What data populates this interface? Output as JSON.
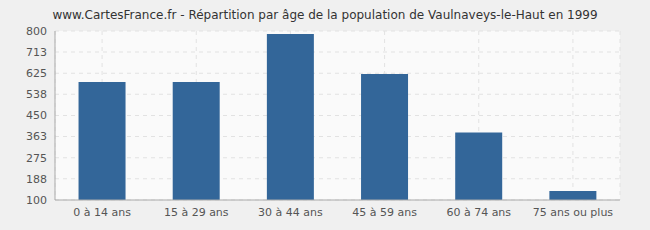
{
  "chart_data": {
    "type": "bar",
    "title": "www.CartesFrance.fr - Répartition par âge de la population de Vaulnaveys-le-Haut en 1999",
    "categories": [
      "0 à 14 ans",
      "15 à 29 ans",
      "30 à 44 ans",
      "45 à 59 ans",
      "60 à 74 ans",
      "75 ans ou plus"
    ],
    "values": [
      589,
      589,
      788,
      622,
      380,
      137
    ],
    "color": "#336699",
    "ylim": [
      100,
      800
    ],
    "yticks": [
      100,
      188,
      275,
      363,
      450,
      538,
      625,
      713,
      800
    ],
    "grid": true
  }
}
